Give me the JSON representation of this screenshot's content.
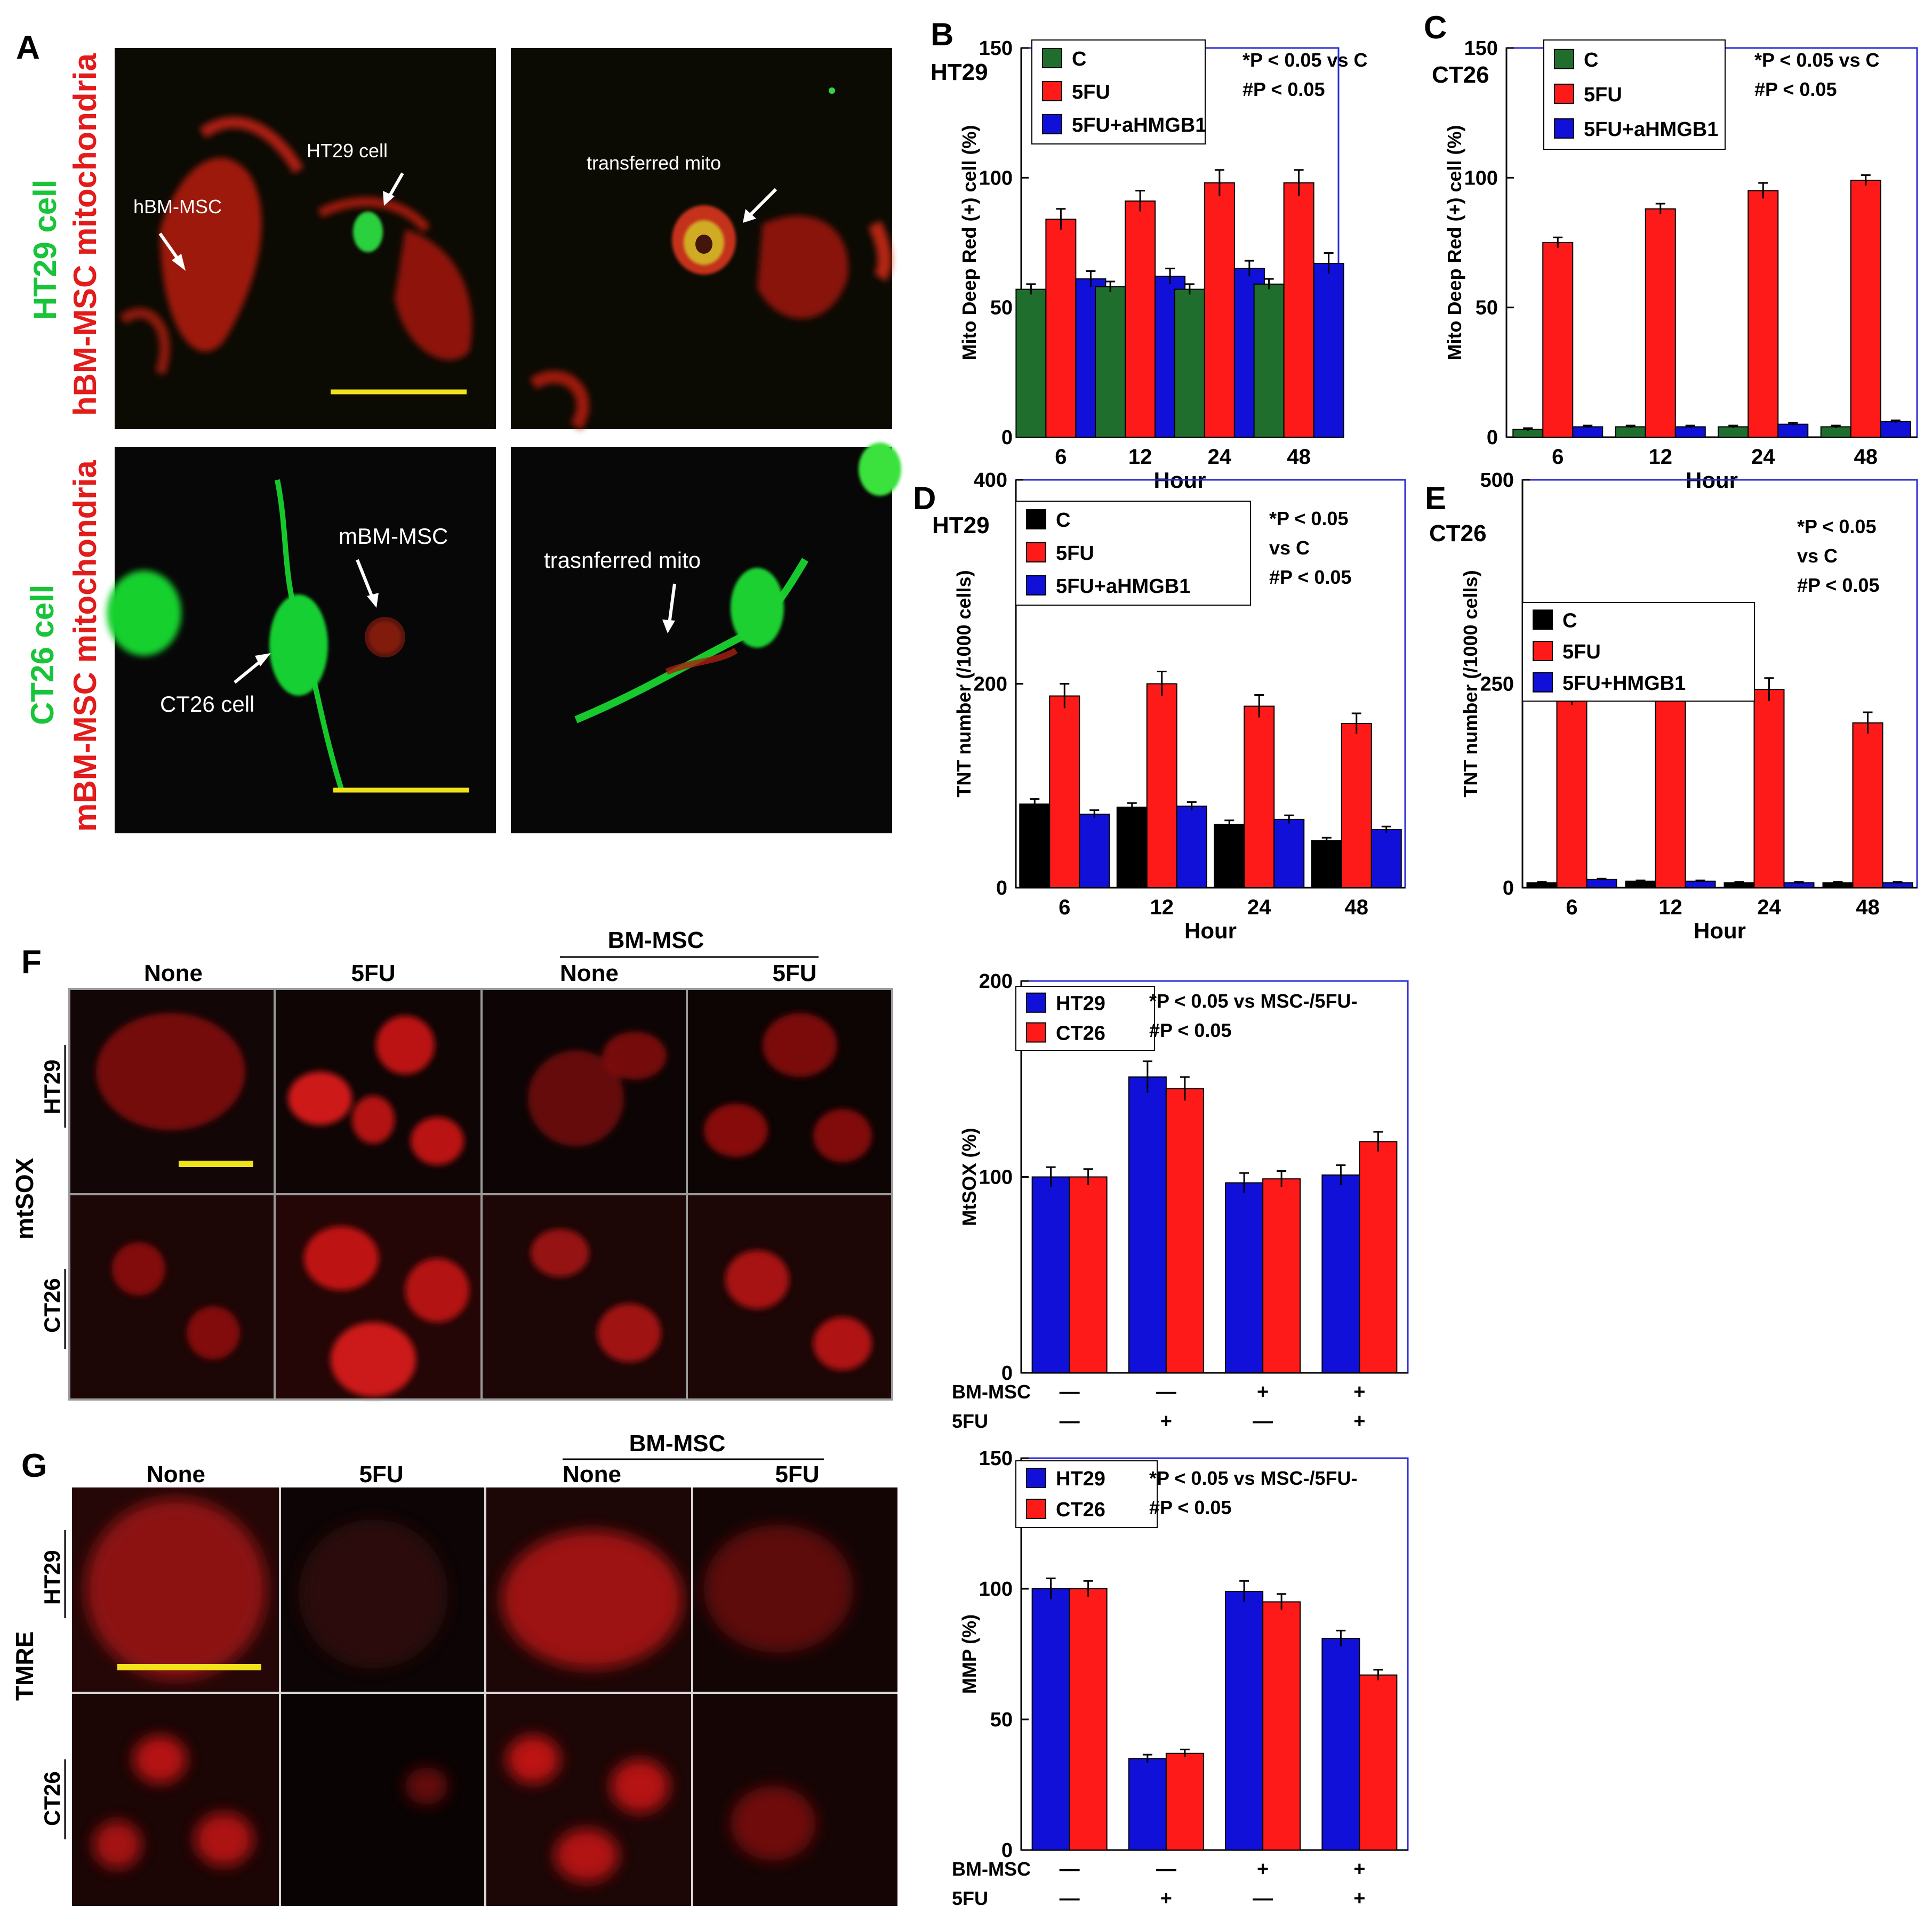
{
  "figure": {
    "panel_letters": [
      "A",
      "B",
      "C",
      "D",
      "E",
      "F",
      "G"
    ],
    "panel_a": {
      "row1_label_green": "HT29 cell",
      "row1_label_red": "hBM-MSC mitochondria",
      "row2_label_green": "CT26 cell",
      "row2_label_red": "mBM-MSC mitochondria",
      "annotations": {
        "hbm_msc": "hBM-MSC",
        "ht29_cell": "HT29  cell",
        "transferred_mito": "transferred mito",
        "mbm_msc": "mBM-MSC",
        "ct26_cell": "CT26 cell",
        "trasnferred_mito": "trasnferred mito"
      }
    },
    "panel_f": {
      "col_none": "None",
      "col_5fu": "5FU",
      "group_label": "BM-MSC",
      "col_none2": "None",
      "col_5fu2": "5FU",
      "row_label": "mtSOX",
      "row_ht29": "HT29",
      "row_ct26": "CT26"
    },
    "panel_g": {
      "col_none": "None",
      "col_5fu": "5FU",
      "group_label": "BM-MSC",
      "col_none2": "None",
      "col_5fu2": "5FU",
      "row_label": "TMRE",
      "row_ht29": "HT29",
      "row_ct26": "CT26"
    },
    "colors": {
      "green_bar": "#1f6e2e",
      "red_bar": "#ff1a1a",
      "blue_bar": "#1010d8",
      "black_bar": "#000000",
      "axis_frame": "#2b2bd6",
      "scale_bar": "#f2e21a"
    }
  },
  "chart_data": [
    {
      "panel": "B",
      "type": "bar",
      "title": "HT29",
      "categories": [
        "6",
        "12",
        "24",
        "48"
      ],
      "xlabel": "Hour",
      "ylabel": "Mito Deep Red (+) cell (%)",
      "ylim": [
        0,
        150
      ],
      "yticks": [
        "0",
        "50",
        "100",
        "150"
      ],
      "series": [
        {
          "name": "C",
          "color": "#1f6e2e",
          "values": [
            57,
            58,
            57,
            59
          ],
          "errors": [
            2,
            2,
            2,
            2
          ]
        },
        {
          "name": "5FU",
          "color": "#ff1a1a",
          "values": [
            84,
            91,
            98,
            98
          ],
          "errors": [
            4,
            4,
            5,
            5
          ]
        },
        {
          "name": "5FU+aHMGB1",
          "color": "#1010d8",
          "values": [
            61,
            62,
            65,
            67
          ],
          "errors": [
            3,
            3,
            3,
            4
          ]
        }
      ],
      "stats_text": [
        "*P < 0.05 vs C",
        "#P < 0.05"
      ],
      "annotations": {
        "star_labels": [
          "*",
          "* #",
          "*",
          "*"
        ],
        "hash_labels": [
          "#",
          "#",
          "#"
        ]
      },
      "legend": "top-left"
    },
    {
      "panel": "C",
      "type": "bar",
      "title": "CT26",
      "categories": [
        "6",
        "12",
        "24",
        "48"
      ],
      "xlabel": "Hour",
      "ylabel": "Mito Deep Red (+) cell (%)",
      "ylim": [
        0,
        150
      ],
      "yticks": [
        "0",
        "50",
        "100",
        "150"
      ],
      "series": [
        {
          "name": "C",
          "color": "#1f6e2e",
          "values": [
            3,
            4,
            4,
            4
          ],
          "errors": [
            0.5,
            0.5,
            0.5,
            0.5
          ]
        },
        {
          "name": "5FU",
          "color": "#ff1a1a",
          "values": [
            75,
            88,
            95,
            99
          ],
          "errors": [
            2,
            2,
            3,
            2
          ]
        },
        {
          "name": "5FU+aHMGB1",
          "color": "#1010d8",
          "values": [
            4,
            4,
            5,
            6
          ],
          "errors": [
            0.5,
            0.5,
            0.5,
            0.5
          ]
        }
      ],
      "stats_text": [
        "*P < 0.05 vs C",
        "#P < 0.05"
      ],
      "legend": "top-left"
    },
    {
      "panel": "D",
      "type": "bar",
      "title": "HT29",
      "categories": [
        "6",
        "12",
        "24",
        "48"
      ],
      "xlabel": "Hour",
      "ylabel": "TNT number (/1000 cells)",
      "ylim": [
        0,
        400
      ],
      "yticks": [
        "0",
        "200",
        "400"
      ],
      "series": [
        {
          "name": "C",
          "color": "#000000",
          "values": [
            82,
            79,
            62,
            46
          ],
          "errors": [
            5,
            4,
            4,
            3
          ]
        },
        {
          "name": "5FU",
          "color": "#ff1a1a",
          "values": [
            188,
            200,
            178,
            161
          ],
          "errors": [
            12,
            12,
            11,
            10
          ]
        },
        {
          "name": "5FU+aHMGB1",
          "color": "#1010d8",
          "values": [
            72,
            80,
            67,
            57
          ],
          "errors": [
            4,
            4,
            4,
            3
          ]
        }
      ],
      "stats_text": [
        "*P < 0.05",
        "vs C",
        "#P < 0.05"
      ],
      "legend": "top-left"
    },
    {
      "panel": "E",
      "type": "bar",
      "title": "CT26",
      "categories": [
        "6",
        "12",
        "24",
        "48"
      ],
      "xlabel": "Hour",
      "ylabel": "TNT number (/1000 cells)",
      "ylim": [
        0,
        500
      ],
      "yticks": [
        "0",
        "250",
        "500"
      ],
      "series": [
        {
          "name": "C",
          "color": "#000000",
          "values": [
            6,
            8,
            6,
            6
          ],
          "errors": [
            1,
            1,
            1,
            1
          ]
        },
        {
          "name": "5FU",
          "color": "#ff1a1a",
          "values": [
            239,
            249,
            243,
            202
          ],
          "errors": [
            15,
            15,
            14,
            13
          ]
        },
        {
          "name": "5FU+HMGB1",
          "color": "#1010d8",
          "values": [
            10,
            8,
            6,
            6
          ],
          "errors": [
            1,
            1,
            1,
            1
          ]
        }
      ],
      "stats_text": [
        "*P < 0.05",
        "vs C",
        "#P < 0.05"
      ],
      "legend": "top-left"
    },
    {
      "panel": "F",
      "type": "bar",
      "categories": [
        "1",
        "2",
        "3",
        "4"
      ],
      "row_labels": {
        "BM-MSC": [
          "—",
          "—",
          "+",
          "+"
        ],
        "5FU": [
          "—",
          "+",
          "—",
          "+"
        ]
      },
      "ylabel": "MtSOX (%)",
      "ylim": [
        0,
        200
      ],
      "yticks": [
        "0",
        "100",
        "200"
      ],
      "series": [
        {
          "name": "HT29",
          "color": "#1010d8",
          "values": [
            100,
            151,
            97,
            101
          ],
          "errors": [
            5,
            8,
            5,
            5
          ]
        },
        {
          "name": "CT26",
          "color": "#ff1a1a",
          "values": [
            100,
            145,
            99,
            118
          ],
          "errors": [
            4,
            6,
            4,
            5
          ]
        }
      ],
      "stats_text": [
        "*P < 0.05 vs MSC-/5FU-",
        "#P < 0.05"
      ],
      "legend": "top-left"
    },
    {
      "panel": "G",
      "type": "bar",
      "categories": [
        "1",
        "2",
        "3",
        "4"
      ],
      "row_labels": {
        "BM-MSC": [
          "—",
          "—",
          "+",
          "+"
        ],
        "5FU": [
          "—",
          "+",
          "—",
          "+"
        ]
      },
      "ylabel": "MMP (%)",
      "ylim": [
        0,
        150
      ],
      "yticks": [
        "0",
        "50",
        "100",
        "150"
      ],
      "series": [
        {
          "name": "HT29",
          "color": "#1010d8",
          "values": [
            100,
            35,
            99,
            81
          ],
          "errors": [
            4,
            1.5,
            4,
            3
          ]
        },
        {
          "name": "CT26",
          "color": "#ff1a1a",
          "values": [
            100,
            37,
            95,
            67
          ],
          "errors": [
            3,
            1.5,
            3,
            2
          ]
        }
      ],
      "stats_text": [
        "*P < 0.05 vs MSC-/5FU-",
        "#P < 0.05"
      ],
      "legend": "top-left"
    }
  ]
}
